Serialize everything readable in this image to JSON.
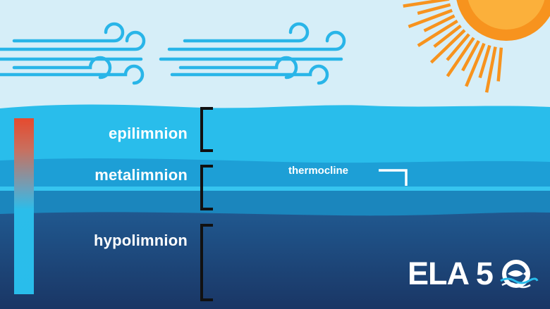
{
  "layers": {
    "epilimnion": "epilimnion",
    "metalimnion": "metalimnion",
    "hypolimnion": "hypolimnion"
  },
  "thermocline": "thermocline",
  "logo": {
    "text": "ELA 5"
  },
  "icons": {
    "sun": "sun-icon",
    "wind": "wind-icon",
    "temperature_bar": "temperature-gradient-bar",
    "logo_mark": "fish-wave-icon"
  },
  "colors": {
    "sky": "#d6eef8",
    "sun": "#f7931e",
    "wind": "#29b5e8",
    "epilimnion": "#29bdeb",
    "metalimnion": "#1b97cf",
    "thermocline": "#36c5ef",
    "hypolimnion_top": "#1f5590",
    "hypolimnion_bottom": "#1a3868",
    "gradient_warm": "#e64a2e",
    "gradient_cold": "#29bdeb",
    "bracket": "#111111"
  }
}
